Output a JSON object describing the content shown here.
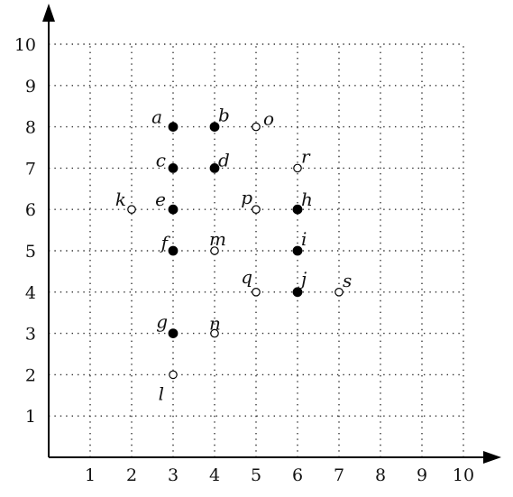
{
  "chart_data": {
    "type": "scatter",
    "title": "",
    "xlabel": "",
    "ylabel": "",
    "xlim": [
      0,
      10
    ],
    "ylim": [
      0,
      10
    ],
    "grid": true,
    "x_ticks": [
      "1",
      "2",
      "3",
      "4",
      "5",
      "6",
      "7",
      "8",
      "9",
      "10"
    ],
    "y_ticks": [
      "1",
      "2",
      "3",
      "4",
      "5",
      "6",
      "7",
      "8",
      "9",
      "10"
    ],
    "colors": {
      "filled": "#000000",
      "open_fill": "#ffffff",
      "grid": "#333333",
      "axis": "#000000"
    },
    "points": [
      {
        "label": "a",
        "x": 3,
        "y": 8,
        "filled": true
      },
      {
        "label": "b",
        "x": 4,
        "y": 8,
        "filled": true
      },
      {
        "label": "o",
        "x": 5,
        "y": 8,
        "filled": false
      },
      {
        "label": "c",
        "x": 3,
        "y": 7,
        "filled": true
      },
      {
        "label": "d",
        "x": 4,
        "y": 7,
        "filled": true
      },
      {
        "label": "r",
        "x": 6,
        "y": 7,
        "filled": false
      },
      {
        "label": "k",
        "x": 2,
        "y": 6,
        "filled": false
      },
      {
        "label": "e",
        "x": 3,
        "y": 6,
        "filled": true
      },
      {
        "label": "p",
        "x": 5,
        "y": 6,
        "filled": false
      },
      {
        "label": "h",
        "x": 6,
        "y": 6,
        "filled": true
      },
      {
        "label": "f",
        "x": 3,
        "y": 5,
        "filled": true
      },
      {
        "label": "m",
        "x": 4,
        "y": 5,
        "filled": false
      },
      {
        "label": "i",
        "x": 6,
        "y": 5,
        "filled": true
      },
      {
        "label": "q",
        "x": 5,
        "y": 4,
        "filled": false
      },
      {
        "label": "j",
        "x": 6,
        "y": 4,
        "filled": true
      },
      {
        "label": "s",
        "x": 7,
        "y": 4,
        "filled": false
      },
      {
        "label": "g",
        "x": 3,
        "y": 3,
        "filled": true
      },
      {
        "label": "n",
        "x": 4,
        "y": 3,
        "filled": false
      },
      {
        "label": "l",
        "x": 3,
        "y": 2,
        "filled": false
      }
    ]
  }
}
